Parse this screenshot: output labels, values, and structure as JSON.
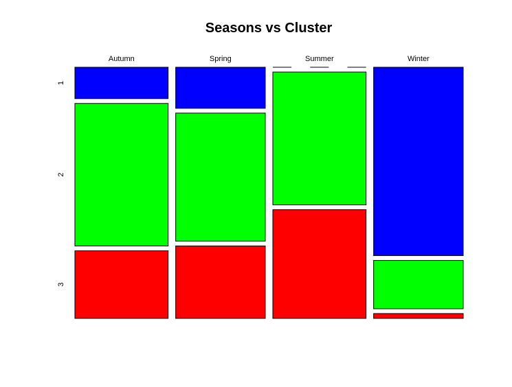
{
  "chart_data": {
    "type": "mosaic",
    "title": "Seasons vs Cluster",
    "xlabel": "",
    "ylabel": "",
    "categories": [
      "Autumn",
      "Spring",
      "Summer",
      "Winter"
    ],
    "column_widths": [
      0.255,
      0.245,
      0.255,
      0.245
    ],
    "row_levels": [
      "1",
      "2",
      "3"
    ],
    "series": [
      {
        "name": "1",
        "color": "#0000ff",
        "values": [
          0.13,
          0.17,
          0.0,
          0.78
        ]
      },
      {
        "name": "2",
        "color": "#00ff00",
        "values": [
          0.59,
          0.53,
          0.55,
          0.2
        ]
      },
      {
        "name": "3",
        "color": "#ff0000",
        "values": [
          0.28,
          0.3,
          0.45,
          0.02
        ]
      }
    ],
    "grid": false,
    "legend": "none"
  }
}
